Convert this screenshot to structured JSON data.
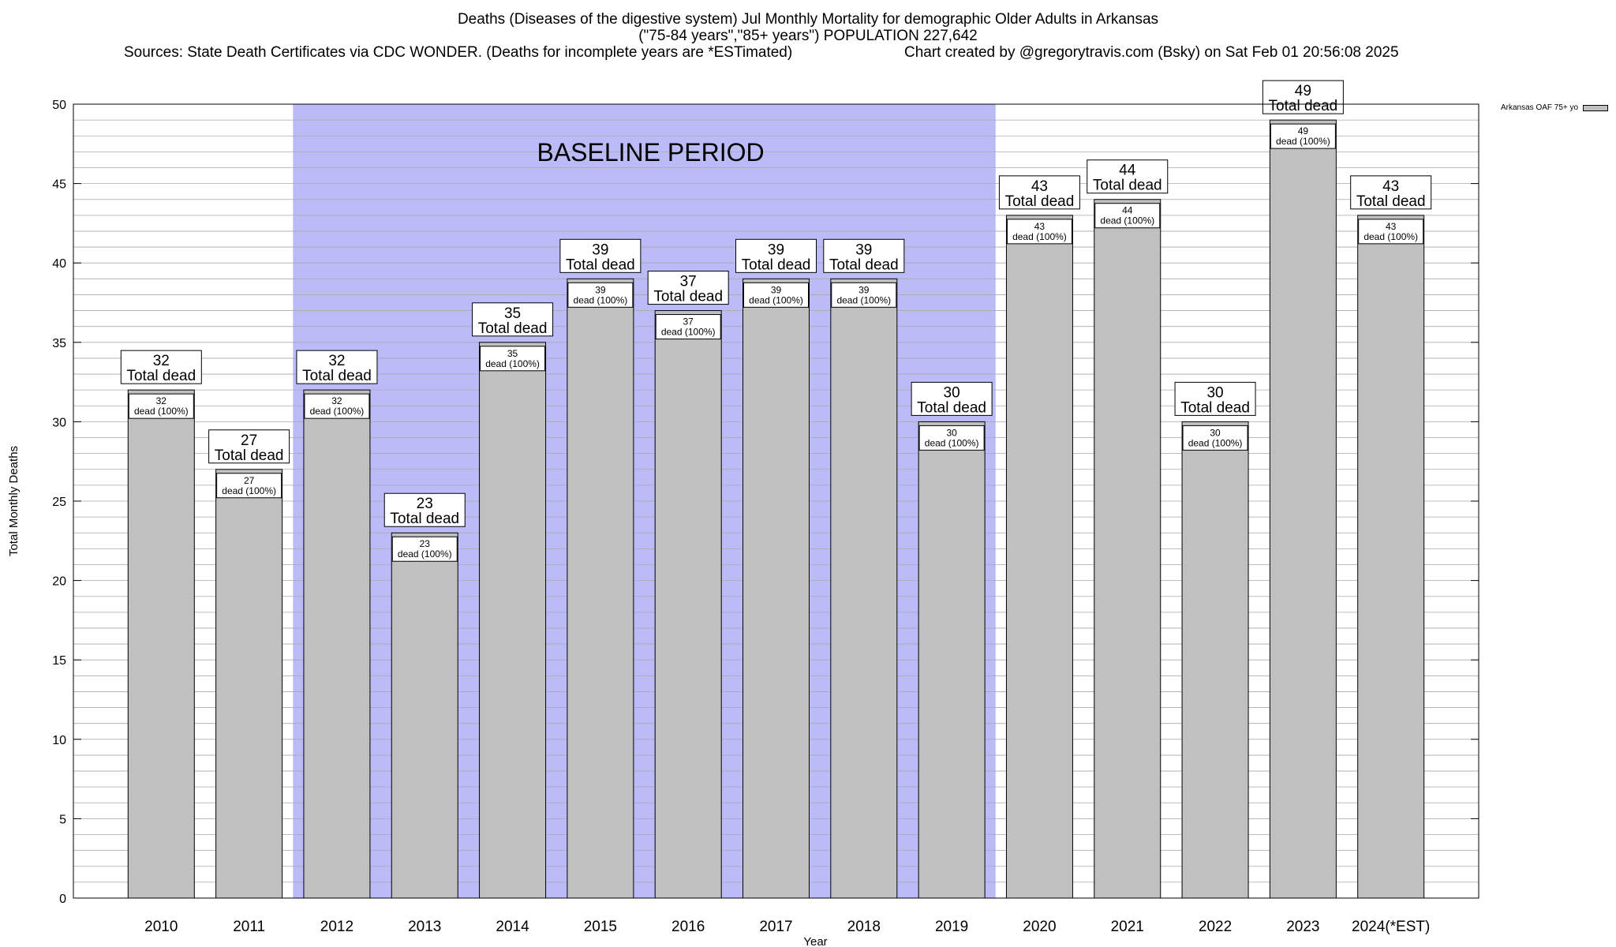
{
  "header": {
    "title_line1": "Deaths (Diseases of the digestive system) Jul Monthly Mortality for demographic Older Adults in Arkansas",
    "title_line2": "(\"75-84 years\",\"85+ years\") POPULATION 227,642",
    "sources": "Sources: State Death Certificates via CDC WONDER. (Deaths for incomplete years are *ESTimated)",
    "credit": "Chart created by @gregorytravis.com (Bsky) on Sat Feb 01 20:56:08 2025"
  },
  "legend": {
    "label": "Arkansas OAF 75+ yo"
  },
  "colors": {
    "bar": "#c0c0c0",
    "baseline": "#bbbbf8",
    "grid": "#aaaaaa"
  },
  "chart_data": {
    "type": "bar",
    "categories": [
      "2010",
      "2011",
      "2012",
      "2013",
      "2014",
      "2015",
      "2016",
      "2017",
      "2018",
      "2019",
      "2020",
      "2021",
      "2022",
      "2023",
      "2024(*EST)"
    ],
    "series": [
      {
        "name": "Arkansas OAF 75+ yo",
        "values": [
          32,
          27,
          32,
          23,
          35,
          39,
          37,
          39,
          39,
          30,
          43,
          44,
          30,
          49,
          43
        ]
      }
    ],
    "ylabel": "Total Monthly Deaths",
    "xlabel": "Year",
    "ylim": [
      0,
      50
    ],
    "yticks": [
      0,
      5,
      10,
      15,
      20,
      25,
      30,
      35,
      40,
      45,
      50
    ],
    "minor_grid_step": 1,
    "grid": true,
    "legend_position": "top-right",
    "total_label_suffix": "Total dead",
    "inner_label_line2": "dead (100%)",
    "baseline": {
      "label": "BASELINE PERIOD",
      "start": "2012",
      "end": "2019"
    }
  }
}
